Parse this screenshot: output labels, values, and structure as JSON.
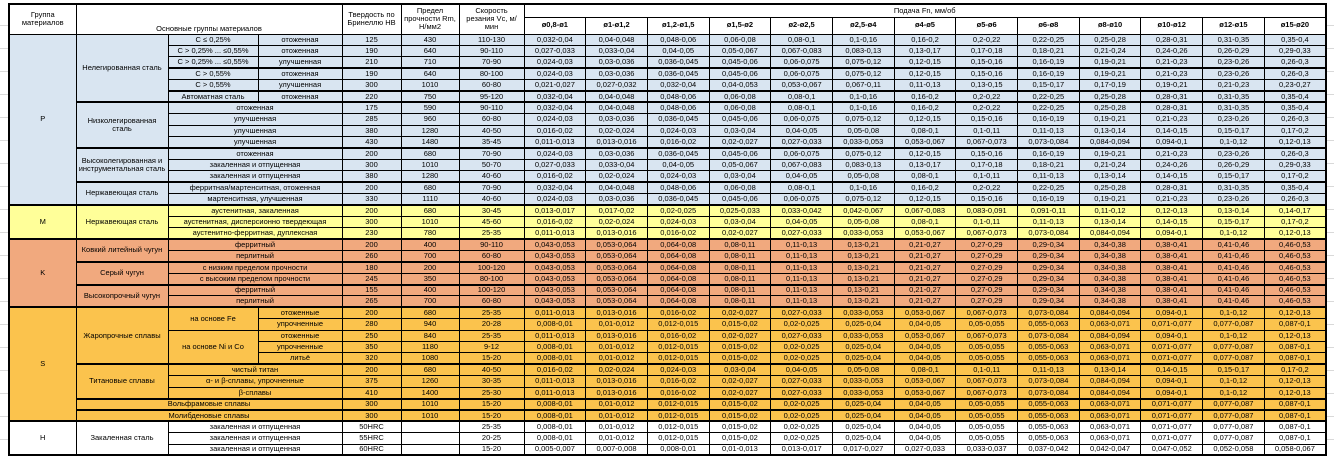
{
  "header": {
    "col_group": "Группа материалов",
    "col_materials": "Основные группы материалов",
    "col_hardness": "Твердость по Бринеллю HB",
    "col_strength": "Предел прочности Rm, Н/мм2",
    "col_speed": "Скорость резания Vc, м/мин",
    "feed_title": "Подача Fn, мм/об",
    "diameters": [
      "ø0,8-ø1",
      "ø1-ø1,2",
      "ø1,2-ø1,5",
      "ø1,5-ø2",
      "ø2-ø2,5",
      "ø2,5-ø4",
      "ø4-ø5",
      "ø5-ø6",
      "ø6-ø8",
      "ø8-ø10",
      "ø10-ø12",
      "ø12-ø15",
      "ø15-ø20"
    ]
  },
  "colors": {
    "p": "#D9E5F1",
    "m": "#FFFF99",
    "k": "#F1A97E",
    "s": "#FBC34D",
    "h": "#FFFFFF"
  },
  "patterns": {
    "A": [
      "0,032-0,04",
      "0,04-0,048",
      "0,048-0,06",
      "0,06-0,08",
      "0,08-0,1",
      "0,1-0,16",
      "0,16-0,2",
      "0,2-0,22",
      "0,22-0,25",
      "0,25-0,28",
      "0,28-0,31",
      "0,31-0,35",
      "0,35-0,4"
    ],
    "B": [
      "0,027-0,033",
      "0,033-0,04",
      "0,04-0,05",
      "0,05-0,067",
      "0,067-0,083",
      "0,083-0,13",
      "0,13-0,17",
      "0,17-0,18",
      "0,18-0,21",
      "0,21-0,24",
      "0,24-0,26",
      "0,26-0,29",
      "0,29-0,33"
    ],
    "C": [
      "0,024-0,03",
      "0,03-0,036",
      "0,036-0,045",
      "0,045-0,06",
      "0,06-0,075",
      "0,075-0,12",
      "0,12-0,15",
      "0,15-0,16",
      "0,16-0,19",
      "0,19-0,21",
      "0,21-0,23",
      "0,23-0,26",
      "0,26-0,3"
    ],
    "D": [
      "0,021-0,027",
      "0,027-0,032",
      "0,032-0,04",
      "0,04-0,053",
      "0,053-0,067",
      "0,067-0,11",
      "0,11-0,13",
      "0,13-0,15",
      "0,15-0,17",
      "0,17-0,19",
      "0,19-0,21",
      "0,21-0,23",
      "0,23-0,27"
    ],
    "E": [
      "0,016-0,02",
      "0,02-0,024",
      "0,024-0,03",
      "0,03-0,04",
      "0,04-0,05",
      "0,05-0,08",
      "0,08-0,1",
      "0,1-0,11",
      "0,11-0,13",
      "0,13-0,14",
      "0,14-0,15",
      "0,15-0,17",
      "0,17-0,2"
    ],
    "F": [
      "0,011-0,013",
      "0,013-0,016",
      "0,016-0,02",
      "0,02-0,027",
      "0,027-0,033",
      "0,033-0,053",
      "0,053-0,067",
      "0,067-0,073",
      "0,073-0,084",
      "0,084-0,094",
      "0,094-0,1",
      "0,1-0,12",
      "0,12-0,13"
    ],
    "G": [
      "0,013-0,017",
      "0,017-0,02",
      "0,02-0,025",
      "0,025-0,033",
      "0,033-0,042",
      "0,042-0,067",
      "0,067-0,083",
      "0,083-0,091",
      "0,091-0,11",
      "0,11-0,12",
      "0,12-0,13",
      "0,13-0,14",
      "0,14-0,17"
    ],
    "K": [
      "0,043-0,053",
      "0,053-0,064",
      "0,064-0,08",
      "0,08-0,11",
      "0,11-0,13",
      "0,13-0,21",
      "0,21-0,27",
      "0,27-0,29",
      "0,29-0,34",
      "0,34-0,38",
      "0,38-0,41",
      "0,41-0,46",
      "0,46-0,53"
    ],
    "S": [
      "0,008-0,01",
      "0,01-0,012",
      "0,012-0,015",
      "0,015-0,02",
      "0,02-0,025",
      "0,025-0,04",
      "0,04-0,05",
      "0,05-0,055",
      "0,055-0,063",
      "0,063-0,071",
      "0,071-0,077",
      "0,077-0,087",
      "0,087-0,1"
    ],
    "H": [
      "0,005-0,007",
      "0,007-0,008",
      "0,008-0,01",
      "0,01-0,013",
      "0,013-0,017",
      "0,017-0,027",
      "0,027-0,033",
      "0,033-0,037",
      "0,037-0,042",
      "0,042-0,047",
      "0,047-0,052",
      "0,052-0,058",
      "0,058-0,067"
    ]
  },
  "rows": [
    {
      "bg": "p",
      "cells": [
        {
          "t": "P",
          "rs": 15,
          "gl": true
        },
        {
          "t": "Нелегированная сталь",
          "rs": 6,
          "w": true
        },
        {
          "t": "С ≤ 0,25%"
        },
        {
          "t": "отоженная"
        },
        {
          "t": "125"
        },
        {
          "t": "430"
        },
        {
          "t": "110-130"
        }
      ],
      "fp": "A"
    },
    {
      "bg": "p",
      "cells": [
        {
          "t": "С > 0,25% ... ≤0,55%"
        },
        {
          "t": "отоженная"
        },
        {
          "t": "190"
        },
        {
          "t": "640"
        },
        {
          "t": "90-110"
        }
      ],
      "fp": "B"
    },
    {
      "bg": "p",
      "cells": [
        {
          "t": "С > 0,25% ... ≤0,55%"
        },
        {
          "t": "улучшенная"
        },
        {
          "t": "210"
        },
        {
          "t": "710"
        },
        {
          "t": "70-90"
        }
      ],
      "fp": "C"
    },
    {
      "bg": "p",
      "sep": true,
      "cells": [
        {
          "t": "С > 0,55%"
        },
        {
          "t": "отоженная"
        },
        {
          "t": "190"
        },
        {
          "t": "640"
        },
        {
          "t": "80-100"
        }
      ],
      "fp": "C"
    },
    {
      "bg": "p",
      "cells": [
        {
          "t": "С > 0,55%"
        },
        {
          "t": "улучшенная"
        },
        {
          "t": "300"
        },
        {
          "t": "1010"
        },
        {
          "t": "60-80"
        }
      ],
      "fp": "D"
    },
    {
      "bg": "p",
      "sep": true,
      "cells": [
        {
          "t": "Автоматная сталь"
        },
        {
          "t": "отоженная"
        },
        {
          "t": "220"
        },
        {
          "t": "750"
        },
        {
          "t": "95-120"
        }
      ],
      "fp": "A"
    },
    {
      "bg": "p",
      "sep": true,
      "cells": [
        {
          "t": "Низколегированная сталь",
          "rs": 4,
          "w": true
        },
        {
          "t": "отоженная",
          "cs": 2
        },
        {
          "t": "175"
        },
        {
          "t": "590"
        },
        {
          "t": "90-110"
        }
      ],
      "fp": "A"
    },
    {
      "bg": "p",
      "cells": [
        {
          "t": "улучшенная",
          "cs": 2
        },
        {
          "t": "285"
        },
        {
          "t": "960"
        },
        {
          "t": "60-80"
        }
      ],
      "fp": "C"
    },
    {
      "bg": "p",
      "cells": [
        {
          "t": "улучшенная",
          "cs": 2
        },
        {
          "t": "380"
        },
        {
          "t": "1280"
        },
        {
          "t": "40-50"
        }
      ],
      "fp": "E"
    },
    {
      "bg": "p",
      "cells": [
        {
          "t": "улучшенная",
          "cs": 2
        },
        {
          "t": "430"
        },
        {
          "t": "1480"
        },
        {
          "t": "35-45"
        }
      ],
      "fp": "F"
    },
    {
      "bg": "p",
      "sep": true,
      "cells": [
        {
          "t": "Высоколегированная и инструментальная сталь",
          "rs": 3,
          "w": true
        },
        {
          "t": "отоженная",
          "cs": 2
        },
        {
          "t": "200"
        },
        {
          "t": "680"
        },
        {
          "t": "70-90"
        }
      ],
      "fp": "C"
    },
    {
      "bg": "p",
      "cells": [
        {
          "t": "закаленная и отпущенная",
          "cs": 2
        },
        {
          "t": "300"
        },
        {
          "t": "1010"
        },
        {
          "t": "50-70"
        }
      ],
      "fp": "B"
    },
    {
      "bg": "p",
      "cells": [
        {
          "t": "закаленная и отпущенная",
          "cs": 2
        },
        {
          "t": "380"
        },
        {
          "t": "1280"
        },
        {
          "t": "40-60"
        }
      ],
      "fp": "E"
    },
    {
      "bg": "p",
      "sep": true,
      "cells": [
        {
          "t": "Нержавеющая сталь",
          "rs": 2,
          "w": true
        },
        {
          "t": "ферритная/мартенситная, отоженная",
          "cs": 2
        },
        {
          "t": "200"
        },
        {
          "t": "680"
        },
        {
          "t": "70-90"
        }
      ],
      "fp": "A"
    },
    {
      "bg": "p",
      "cells": [
        {
          "t": "мартенситная, улучшенная",
          "cs": 2
        },
        {
          "t": "330"
        },
        {
          "t": "1110"
        },
        {
          "t": "40-60"
        }
      ],
      "fp": "C"
    },
    {
      "bg": "m",
      "sep": true,
      "cells": [
        {
          "t": "M",
          "rs": 3,
          "gl": true
        },
        {
          "t": "Нержавеющая сталь",
          "rs": 3,
          "w": true
        },
        {
          "t": "аустенитная, закаленная",
          "cs": 2
        },
        {
          "t": "200"
        },
        {
          "t": "680"
        },
        {
          "t": "30-45"
        }
      ],
      "fp": "G"
    },
    {
      "bg": "m",
      "cells": [
        {
          "t": "аустенитная, дисперсионно твердеющая",
          "cs": 2
        },
        {
          "t": "300"
        },
        {
          "t": "1010"
        },
        {
          "t": "45-60"
        }
      ],
      "fp": "E"
    },
    {
      "bg": "m",
      "cells": [
        {
          "t": "аустенитно-ферритная, дуплексная",
          "cs": 2
        },
        {
          "t": "230"
        },
        {
          "t": "780"
        },
        {
          "t": "25-35"
        }
      ],
      "fp": "F"
    },
    {
      "bg": "k",
      "sep": true,
      "cells": [
        {
          "t": "K",
          "rs": 6,
          "gl": true
        },
        {
          "t": "Ковкий литейный чугун",
          "rs": 2,
          "w": true
        },
        {
          "t": "ферритный",
          "cs": 2
        },
        {
          "t": "200"
        },
        {
          "t": "400"
        },
        {
          "t": "90-110"
        }
      ],
      "fp": "K"
    },
    {
      "bg": "k",
      "cells": [
        {
          "t": "перлитный",
          "cs": 2
        },
        {
          "t": "260"
        },
        {
          "t": "700"
        },
        {
          "t": "60-80"
        }
      ],
      "fp": "K"
    },
    {
      "bg": "k",
      "sep": true,
      "cells": [
        {
          "t": "Серый чугун",
          "rs": 2,
          "w": true
        },
        {
          "t": "с низким пределом прочности",
          "cs": 2
        },
        {
          "t": "180"
        },
        {
          "t": "200"
        },
        {
          "t": "100-120"
        }
      ],
      "fp": "K"
    },
    {
      "bg": "k",
      "cells": [
        {
          "t": "с высоким пределом прочности",
          "cs": 2
        },
        {
          "t": "245"
        },
        {
          "t": "350"
        },
        {
          "t": "80-100"
        }
      ],
      "fp": "K"
    },
    {
      "bg": "k",
      "sep": true,
      "cells": [
        {
          "t": "Высокопрочный чугун",
          "rs": 2,
          "w": true
        },
        {
          "t": "ферритный",
          "cs": 2
        },
        {
          "t": "155"
        },
        {
          "t": "400"
        },
        {
          "t": "100-120"
        }
      ],
      "fp": "K"
    },
    {
      "bg": "k",
      "cells": [
        {
          "t": "перлитный",
          "cs": 2
        },
        {
          "t": "265"
        },
        {
          "t": "700"
        },
        {
          "t": "60-80"
        }
      ],
      "fp": "K"
    },
    {
      "bg": "s",
      "sep": true,
      "cells": [
        {
          "t": "S",
          "rs": 10,
          "gl": true
        },
        {
          "t": "Жаропрочные сплавы",
          "rs": 5,
          "w": true
        },
        {
          "t": "на основе Fe",
          "rs": 2,
          "w": true
        },
        {
          "t": "отоженные"
        },
        {
          "t": "200"
        },
        {
          "t": "680"
        },
        {
          "t": "25-35"
        }
      ],
      "fp": "F"
    },
    {
      "bg": "s",
      "cells": [
        {
          "t": "упрочненные"
        },
        {
          "t": "280"
        },
        {
          "t": "940"
        },
        {
          "t": "20-28"
        }
      ],
      "fp": "S"
    },
    {
      "bg": "s",
      "cells": [
        {
          "t": "на основе Ni и Co",
          "rs": 3,
          "w": true
        },
        {
          "t": "отоженные"
        },
        {
          "t": "250"
        },
        {
          "t": "840"
        },
        {
          "t": "25-35"
        }
      ],
      "fp": "F"
    },
    {
      "bg": "s",
      "cells": [
        {
          "t": "упрочненные"
        },
        {
          "t": "350"
        },
        {
          "t": "1180"
        },
        {
          "t": "9-12"
        }
      ],
      "fp": "S"
    },
    {
      "bg": "s",
      "cells": [
        {
          "t": "литьё"
        },
        {
          "t": "320"
        },
        {
          "t": "1080"
        },
        {
          "t": "15-20"
        }
      ],
      "fp": "S"
    },
    {
      "bg": "s",
      "sep": true,
      "cells": [
        {
          "t": "Титановые сплавы",
          "rs": 3,
          "w": true
        },
        {
          "t": "чистый титан",
          "cs": 2
        },
        {
          "t": "200"
        },
        {
          "t": "680"
        },
        {
          "t": "40-50"
        }
      ],
      "fp": "E"
    },
    {
      "bg": "s",
      "cells": [
        {
          "t": "α- и β-сплавы, упрочненные",
          "cs": 2
        },
        {
          "t": "375"
        },
        {
          "t": "1260"
        },
        {
          "t": "30-35"
        }
      ],
      "fp": "F"
    },
    {
      "bg": "s",
      "cells": [
        {
          "t": "β-сплавы",
          "cs": 2
        },
        {
          "t": "410"
        },
        {
          "t": "1400"
        },
        {
          "t": "25-30"
        }
      ],
      "fp": "F"
    },
    {
      "bg": "s",
      "sep": true,
      "cells": [
        {
          "t": "Вольфрамовые сплавы",
          "cs": 3
        },
        {
          "t": "300"
        },
        {
          "t": "1010"
        },
        {
          "t": "15-20"
        }
      ],
      "fp": "S"
    },
    {
      "bg": "s",
      "sep": true,
      "cells": [
        {
          "t": "Молибденовые сплавы",
          "cs": 3
        },
        {
          "t": "300"
        },
        {
          "t": "1010"
        },
        {
          "t": "15-20"
        }
      ],
      "fp": "S"
    },
    {
      "bg": "h",
      "sep": true,
      "cells": [
        {
          "t": "H",
          "rs": 3,
          "gl": true
        },
        {
          "t": "Закаленная сталь",
          "rs": 3,
          "w": true
        },
        {
          "t": "закаленная и отпущенная",
          "cs": 2
        },
        {
          "t": "50HRC"
        },
        {
          "t": ""
        },
        {
          "t": "25-35"
        }
      ],
      "fp": "S"
    },
    {
      "bg": "h",
      "cells": [
        {
          "t": "закаленная и отпущенная",
          "cs": 2
        },
        {
          "t": "55HRC"
        },
        {
          "t": ""
        },
        {
          "t": "20-25"
        }
      ],
      "fp": "S"
    },
    {
      "bg": "h",
      "cells": [
        {
          "t": "закаленная и отпущенная",
          "cs": 2
        },
        {
          "t": "60HRC"
        },
        {
          "t": ""
        },
        {
          "t": "15-20"
        }
      ],
      "fp": "H"
    }
  ]
}
